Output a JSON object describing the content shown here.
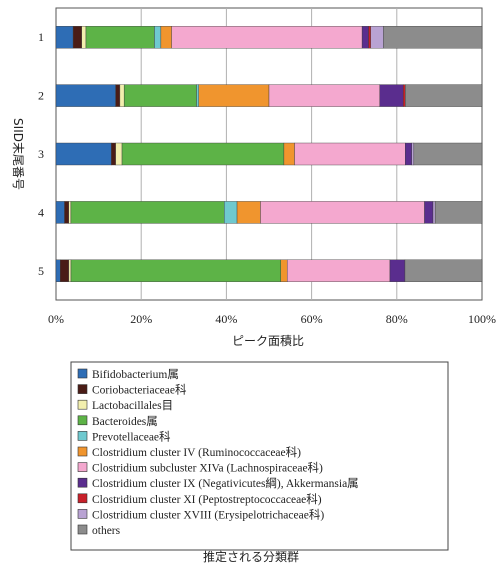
{
  "chart_data": {
    "type": "bar",
    "orientation": "horizontal",
    "stacked": "percent",
    "title": "",
    "xlabel": "ピーク面積比",
    "ylabel": "SIID末尾番号",
    "caption": "推定される分類群",
    "xlim": [
      0,
      100
    ],
    "xticks": [
      "0%",
      "20%",
      "40%",
      "60%",
      "80%",
      "100%"
    ],
    "grid": "vertical",
    "legend_position": "bottom",
    "categories": [
      "1",
      "2",
      "3",
      "4",
      "5"
    ],
    "series": [
      {
        "name": "Bifidobacterium属",
        "color": "#2e6db5",
        "values": [
          4,
          14,
          13,
          2,
          1
        ]
      },
      {
        "name": "Coriobacteriaceae科",
        "color": "#4a1c16",
        "values": [
          2,
          1,
          1,
          1,
          2
        ]
      },
      {
        "name": "Lactobacillales目",
        "color": "#f2efae",
        "values": [
          1,
          1,
          1.5,
          0.5,
          0.5
        ]
      },
      {
        "name": "Bacteroides属",
        "color": "#5db347",
        "values": [
          16,
          17,
          38,
          36,
          49
        ]
      },
      {
        "name": "Prevotellaceae科",
        "color": "#6fc9cf",
        "values": [
          1.5,
          0.5,
          0,
          3,
          0
        ]
      },
      {
        "name": "Clostridium cluster IV (Ruminococcaceae科)",
        "color": "#f0952e",
        "values": [
          2.5,
          16.5,
          2.5,
          5.5,
          1.5
        ]
      },
      {
        "name": "Clostridium subcluster XIVa (Lachnospiraceae科)",
        "color": "#f4a8cf",
        "values": [
          44.5,
          26,
          26,
          38.5,
          24
        ]
      },
      {
        "name": "Clostridium cluster IX (Negativicutes綱), Akkermansia属",
        "color": "#5a2d8e",
        "values": [
          1.5,
          5.5,
          1.5,
          2,
          3.5
        ]
      },
      {
        "name": "Clostridium cluster XI (Peptostreptococcaceae科)",
        "color": "#c8202a",
        "values": [
          0.5,
          0.5,
          0,
          0,
          0
        ]
      },
      {
        "name": "Clostridium cluster XVIII (Erysipelotrichaceae科)",
        "color": "#b9a3d3",
        "values": [
          3,
          0,
          0.5,
          0.5,
          0
        ]
      },
      {
        "name": "others",
        "color": "#8c8c8c",
        "values": [
          23,
          18,
          16,
          11,
          18
        ]
      }
    ]
  }
}
